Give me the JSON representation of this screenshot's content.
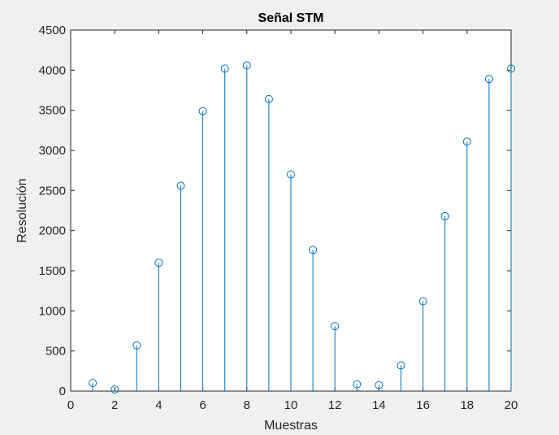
{
  "chart_data": {
    "type": "stem",
    "title": "Señal STM",
    "xlabel": "Muestras",
    "ylabel": "Resolución",
    "xlim": [
      0,
      20
    ],
    "ylim": [
      0,
      4500
    ],
    "xticks": [
      "0",
      "2",
      "4",
      "6",
      "8",
      "10",
      "12",
      "14",
      "16",
      "18",
      "20"
    ],
    "yticks": [
      "0",
      "500",
      "1000",
      "1500",
      "2000",
      "2500",
      "3000",
      "3500",
      "4000",
      "4500"
    ],
    "grid": false,
    "series": [
      {
        "color": "#0072bd",
        "marker": "circle",
        "x": [
          1,
          2,
          3,
          4,
          5,
          6,
          7,
          8,
          9,
          10,
          11,
          12,
          13,
          14,
          15,
          16,
          17,
          18,
          19,
          20
        ],
        "y": [
          100,
          20,
          570,
          1600,
          2560,
          3490,
          4020,
          4060,
          3640,
          2700,
          1760,
          810,
          85,
          75,
          320,
          1120,
          2180,
          3110,
          3890,
          4020
        ]
      }
    ]
  },
  "colors": {
    "figure_background": "#f0f0f0",
    "axes_background": "#ffffff",
    "axes_color": "#262626",
    "stem_color": "#0072bd"
  }
}
